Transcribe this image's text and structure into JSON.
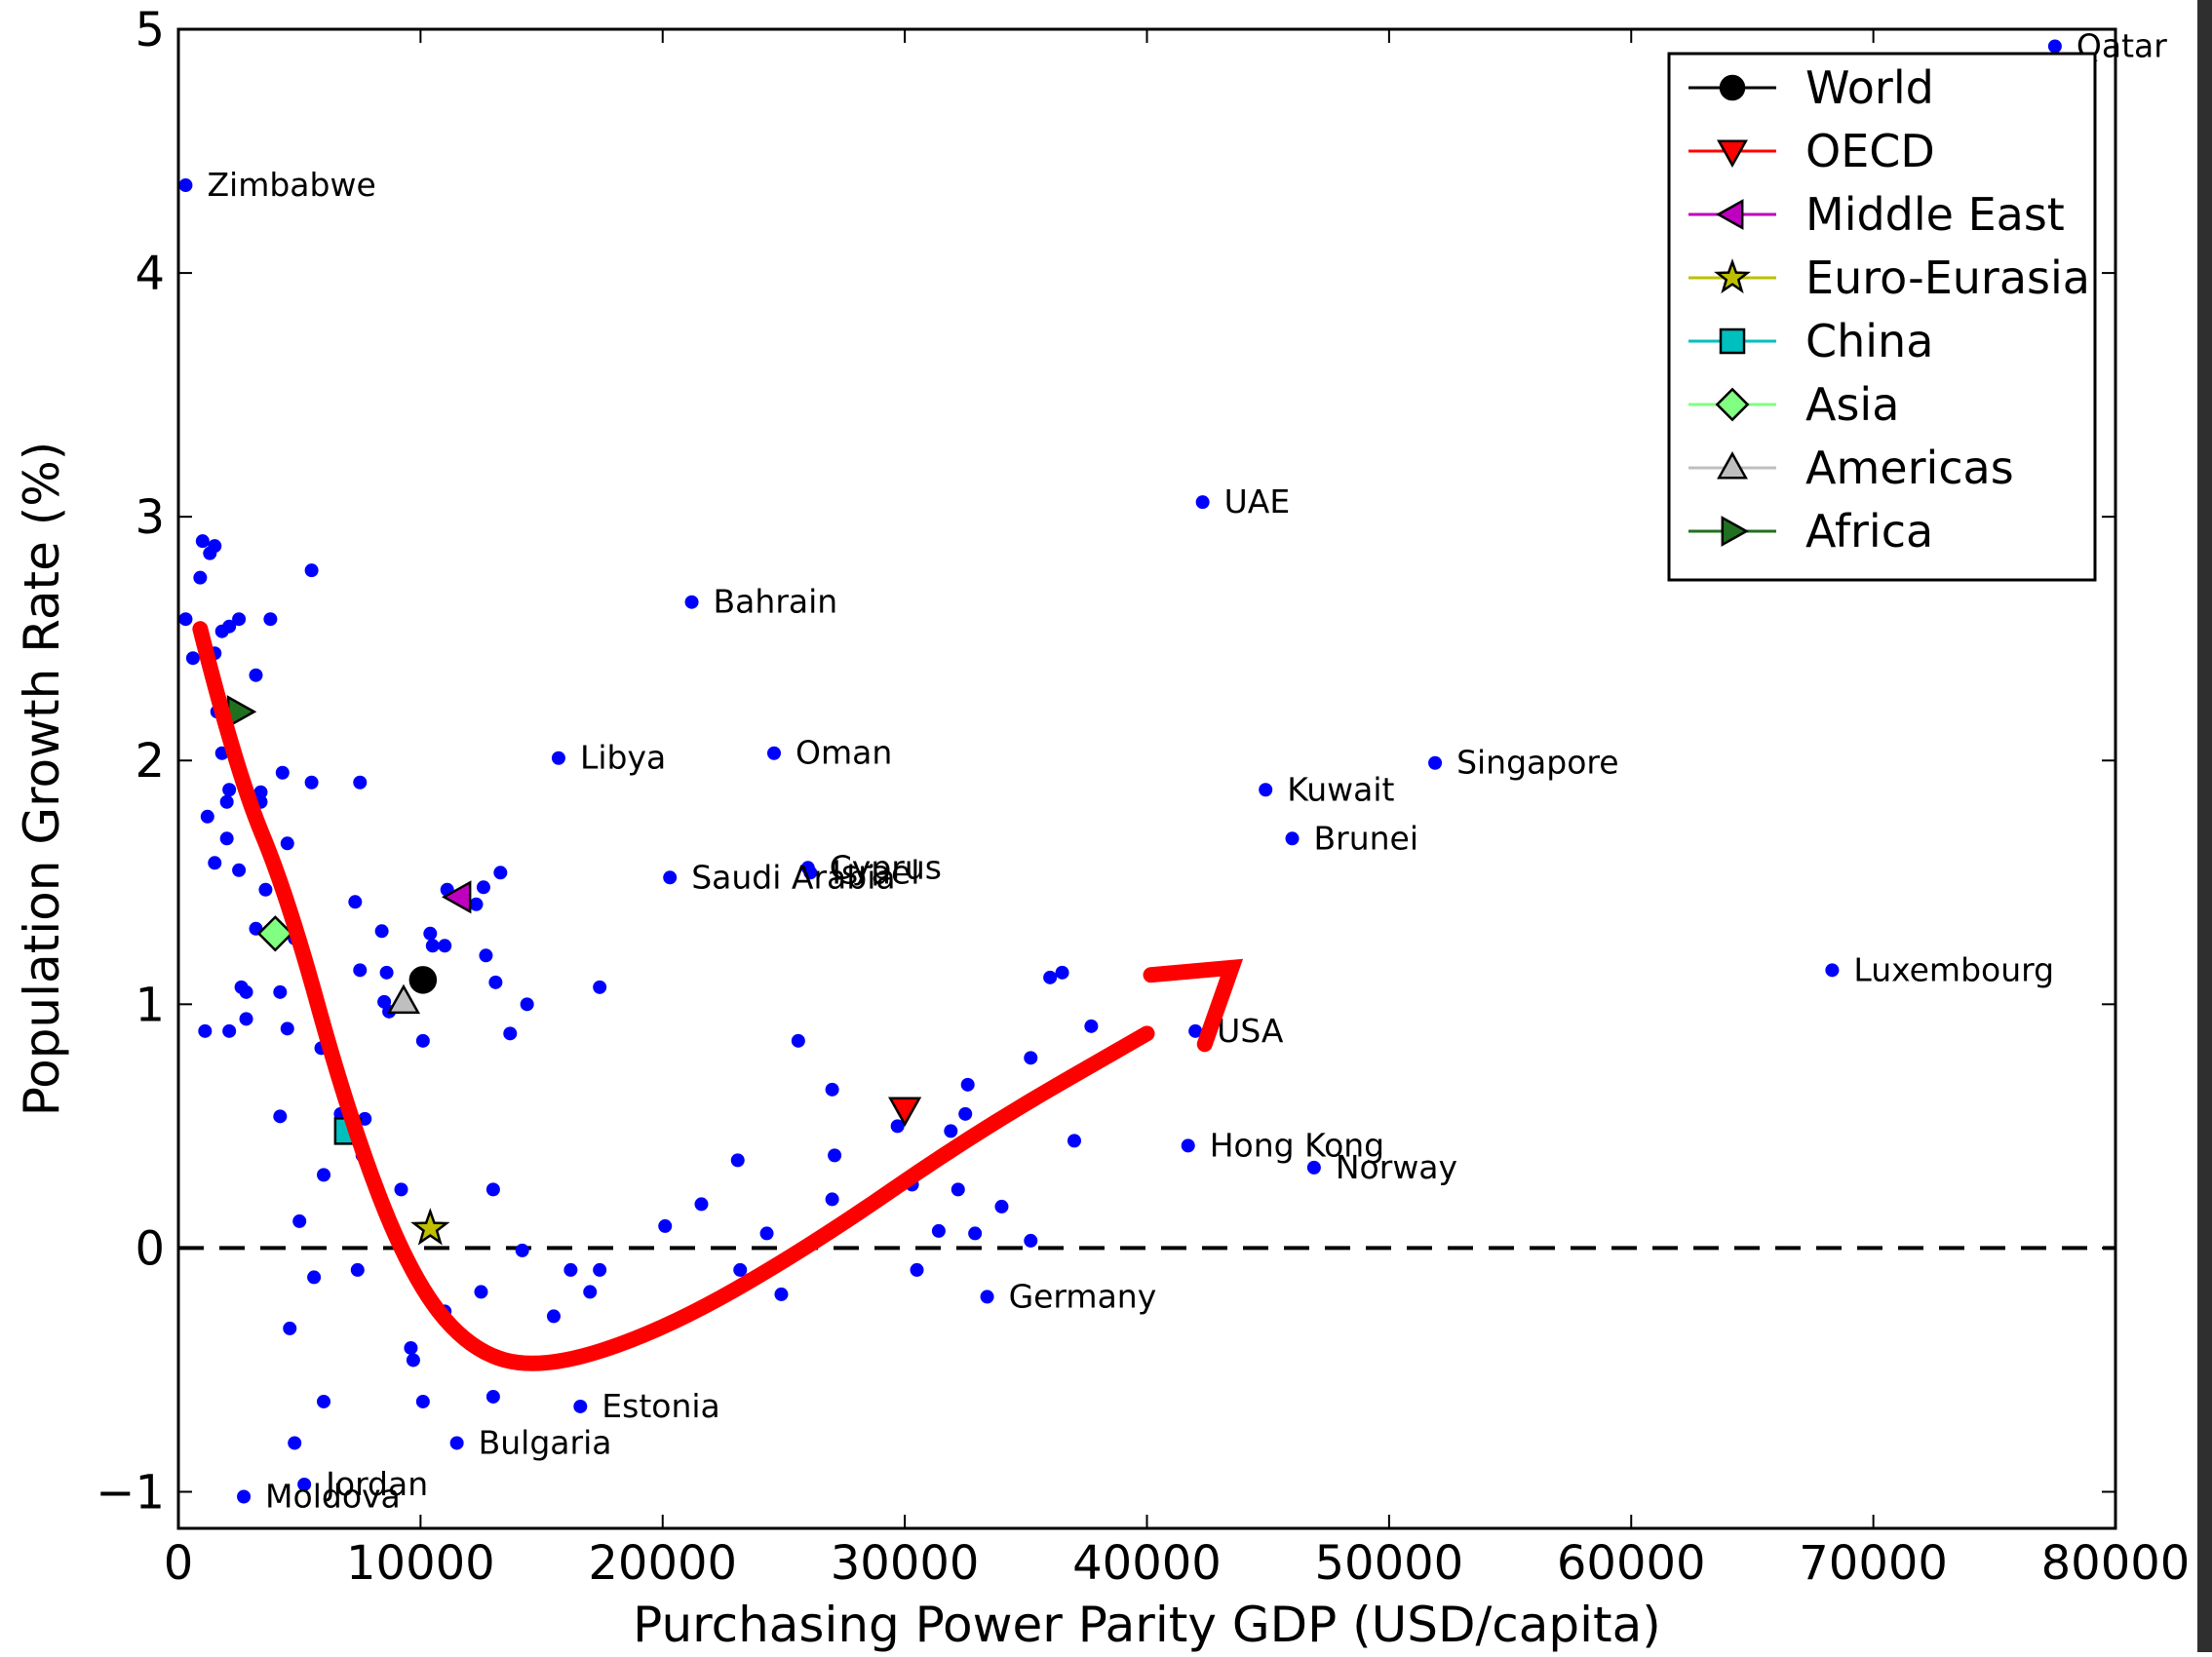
{
  "chart_data": {
    "type": "scatter",
    "xlabel": "Purchasing Power Parity GDP (USD/capita)",
    "ylabel": "Population Growth Rate (%)",
    "xlim": [
      0,
      80000
    ],
    "ylim": [
      -1.15,
      5
    ],
    "xticks": [
      0,
      10000,
      20000,
      30000,
      40000,
      50000,
      60000,
      70000,
      80000
    ],
    "xtick_labels": [
      "0",
      "10000",
      "20000",
      "30000",
      "40000",
      "50000",
      "60000",
      "70000",
      "80000"
    ],
    "yticks": [
      -1,
      0,
      1,
      2,
      3,
      4,
      5
    ],
    "ytick_labels": [
      "−1",
      "0",
      "1",
      "2",
      "3",
      "4",
      "5"
    ],
    "zero_line": {
      "y": 0,
      "style": "dashed"
    },
    "grid": false,
    "legend_position": "top-right",
    "countries": {
      "color": "#0000ff",
      "labeled_points": [
        {
          "label": "Qatar",
          "x": 77500,
          "y": 4.93
        },
        {
          "label": "Zimbabwe",
          "x": 300,
          "y": 4.36
        },
        {
          "label": "UAE",
          "x": 42300,
          "y": 3.06
        },
        {
          "label": "Bahrain",
          "x": 21200,
          "y": 2.65
        },
        {
          "label": "Libya",
          "x": 15700,
          "y": 2.01
        },
        {
          "label": "Oman",
          "x": 24600,
          "y": 2.03
        },
        {
          "label": "Singapore",
          "x": 51900,
          "y": 1.99
        },
        {
          "label": "Kuwait",
          "x": 44900,
          "y": 1.88
        },
        {
          "label": "Brunei",
          "x": 46000,
          "y": 1.68
        },
        {
          "label": "Cyprus",
          "x": 26000,
          "y": 1.56
        },
        {
          "label": "Saudi Arabia",
          "x": 20300,
          "y": 1.52
        },
        {
          "label": "Israel",
          "x": 26100,
          "y": 1.54
        },
        {
          "label": "Luxembourg",
          "x": 68300,
          "y": 1.14
        },
        {
          "label": "USA",
          "x": 42000,
          "y": 0.89
        },
        {
          "label": "Hong Kong",
          "x": 41700,
          "y": 0.42
        },
        {
          "label": "Norway",
          "x": 46900,
          "y": 0.33
        },
        {
          "label": "Germany",
          "x": 33400,
          "y": -0.2
        },
        {
          "label": "Estonia",
          "x": 16600,
          "y": -0.65
        },
        {
          "label": "Bulgaria",
          "x": 11500,
          "y": -0.8
        },
        {
          "label": "Jordan",
          "x": 5200,
          "y": -0.97
        },
        {
          "label": "Moldova",
          "x": 2700,
          "y": -1.02
        }
      ],
      "unlabeled_points": [
        [
          1000,
          2.9
        ],
        [
          1300,
          2.85
        ],
        [
          1500,
          2.88
        ],
        [
          900,
          2.75
        ],
        [
          300,
          2.58
        ],
        [
          600,
          2.42
        ],
        [
          1500,
          2.44
        ],
        [
          2100,
          2.55
        ],
        [
          2500,
          2.58
        ],
        [
          3800,
          2.58
        ],
        [
          3200,
          2.35
        ],
        [
          5500,
          2.78
        ],
        [
          1800,
          2.53
        ],
        [
          1600,
          2.2
        ],
        [
          1800,
          2.03
        ],
        [
          2100,
          1.88
        ],
        [
          2000,
          1.83
        ],
        [
          1200,
          1.77
        ],
        [
          2000,
          1.68
        ],
        [
          3400,
          1.87
        ],
        [
          3400,
          1.83
        ],
        [
          4300,
          1.95
        ],
        [
          5500,
          1.91
        ],
        [
          7500,
          1.91
        ],
        [
          1500,
          1.58
        ],
        [
          2500,
          1.55
        ],
        [
          4500,
          1.66
        ],
        [
          3600,
          1.47
        ],
        [
          7300,
          1.42
        ],
        [
          3200,
          1.31
        ],
        [
          4800,
          1.27
        ],
        [
          8400,
          1.3
        ],
        [
          10400,
          1.29
        ],
        [
          10500,
          1.24
        ],
        [
          11000,
          1.24
        ],
        [
          11100,
          1.47
        ],
        [
          12300,
          1.41
        ],
        [
          12600,
          1.48
        ],
        [
          13300,
          1.54
        ],
        [
          12700,
          1.2
        ],
        [
          13100,
          1.09
        ],
        [
          14400,
          1.0
        ],
        [
          13700,
          0.88
        ],
        [
          17400,
          1.07
        ],
        [
          2600,
          1.07
        ],
        [
          2800,
          1.05
        ],
        [
          4200,
          1.05
        ],
        [
          4500,
          0.9
        ],
        [
          2800,
          0.94
        ],
        [
          2100,
          0.89
        ],
        [
          1100,
          0.89
        ],
        [
          7500,
          1.14
        ],
        [
          8600,
          1.13
        ],
        [
          8500,
          1.01
        ],
        [
          8700,
          0.97
        ],
        [
          10100,
          0.85
        ],
        [
          5900,
          0.82
        ],
        [
          4200,
          0.54
        ],
        [
          6700,
          0.55
        ],
        [
          7700,
          0.53
        ],
        [
          7600,
          0.38
        ],
        [
          6000,
          0.3
        ],
        [
          9200,
          0.24
        ],
        [
          13000,
          0.24
        ],
        [
          5000,
          0.11
        ],
        [
          5600,
          -0.12
        ],
        [
          7400,
          -0.09
        ],
        [
          4600,
          -0.33
        ],
        [
          11000,
          -0.26
        ],
        [
          12500,
          -0.18
        ],
        [
          14200,
          -0.01
        ],
        [
          16200,
          -0.09
        ],
        [
          17400,
          -0.09
        ],
        [
          15500,
          -0.28
        ],
        [
          17000,
          -0.18
        ],
        [
          9600,
          -0.41
        ],
        [
          9700,
          -0.46
        ],
        [
          6000,
          -0.63
        ],
        [
          10100,
          -0.63
        ],
        [
          13000,
          -0.61
        ],
        [
          4800,
          -0.8
        ],
        [
          20100,
          0.09
        ],
        [
          21600,
          0.18
        ],
        [
          23100,
          0.36
        ],
        [
          24300,
          0.06
        ],
        [
          25600,
          0.85
        ],
        [
          23200,
          -0.09
        ],
        [
          23600,
          -0.13
        ],
        [
          24900,
          -0.19
        ],
        [
          27000,
          0.65
        ],
        [
          27100,
          0.38
        ],
        [
          27000,
          0.2
        ],
        [
          29700,
          0.5
        ],
        [
          30300,
          0.26
        ],
        [
          30500,
          -0.09
        ],
        [
          31400,
          0.07
        ],
        [
          31900,
          0.48
        ],
        [
          32500,
          0.55
        ],
        [
          32600,
          0.67
        ],
        [
          32200,
          0.24
        ],
        [
          32900,
          0.06
        ],
        [
          34000,
          0.17
        ],
        [
          35200,
          0.03
        ],
        [
          35200,
          0.78
        ],
        [
          36000,
          1.11
        ],
        [
          36500,
          1.13
        ],
        [
          37700,
          0.91
        ],
        [
          37000,
          0.44
        ]
      ]
    },
    "series": [
      {
        "name": "World",
        "x": 10100,
        "y": 1.1,
        "marker": "circle",
        "color": "#000000",
        "line": "#000000"
      },
      {
        "name": "OECD",
        "x": 30000,
        "y": 0.57,
        "marker": "triangle-down",
        "color": "#ff0000",
        "line": "#ff0000"
      },
      {
        "name": "Middle East",
        "x": 11600,
        "y": 1.44,
        "marker": "triangle-left",
        "color": "#bf00bf",
        "line": "#bf00bf"
      },
      {
        "name": "Euro-Eurasia",
        "x": 10400,
        "y": 0.08,
        "marker": "star",
        "color": "#bfbf00",
        "line": "#bfbf00"
      },
      {
        "name": "China",
        "x": 7000,
        "y": 0.48,
        "marker": "square",
        "color": "#00bfbf",
        "line": "#00bfbf"
      },
      {
        "name": "Asia",
        "x": 4000,
        "y": 1.29,
        "marker": "diamond",
        "color": "#80ff80",
        "line": "#80ff80"
      },
      {
        "name": "Americas",
        "x": 9300,
        "y": 1.01,
        "marker": "triangle-up",
        "color": "#bfbfbf",
        "line": "#bfbfbf"
      },
      {
        "name": "Africa",
        "x": 2500,
        "y": 2.2,
        "marker": "triangle-right",
        "color": "#207020",
        "line": "#207020"
      }
    ],
    "annotation": {
      "type": "arrow",
      "color": "#ff0000",
      "path": [
        [
          900,
          2.54
        ],
        [
          2400,
          1.95
        ],
        [
          4500,
          1.45
        ],
        [
          7000,
          0.55
        ],
        [
          9500,
          -0.1
        ],
        [
          12000,
          -0.42
        ],
        [
          15000,
          -0.5
        ],
        [
          20000,
          -0.34
        ],
        [
          26000,
          0.0
        ],
        [
          33000,
          0.48
        ],
        [
          40000,
          0.88
        ]
      ],
      "head_tip": [
        43500,
        1.15
      ]
    }
  }
}
